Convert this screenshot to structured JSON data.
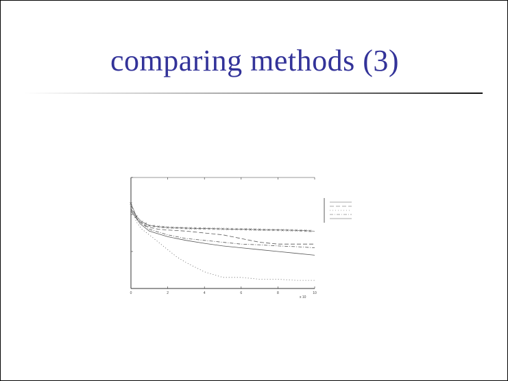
{
  "slide": {
    "title": "comparing methods (3)"
  },
  "chart_data": {
    "type": "line",
    "title": "",
    "xlabel": "",
    "ylabel": "",
    "xlim": [
      0,
      10
    ],
    "x_tick_labels": [
      "0",
      "2",
      "4",
      "6",
      "8",
      "10"
    ],
    "x_multiplier_label": "x 10",
    "ylog": true,
    "ylim_decades": [
      -3,
      0
    ],
    "y_tick_labels": [
      "",
      "",
      ""
    ],
    "grid": false,
    "legend_placement": "right",
    "series": [
      {
        "style": "crosses",
        "x": [
          0,
          0.3,
          0.6,
          1,
          1.5,
          2,
          3,
          4,
          5,
          6,
          7,
          8,
          9,
          10
        ],
        "y": [
          -0.7,
          -1.05,
          -1.2,
          -1.3,
          -1.33,
          -1.35,
          -1.37,
          -1.38,
          -1.39,
          -1.4,
          -1.41,
          -1.42,
          -1.43,
          -1.45
        ]
      },
      {
        "style": "dashed",
        "x": [
          0,
          0.3,
          0.6,
          1,
          1.5,
          2,
          3,
          4,
          5,
          6,
          7,
          8,
          9,
          10
        ],
        "y": [
          -0.75,
          -1.1,
          -1.25,
          -1.35,
          -1.4,
          -1.42,
          -1.45,
          -1.5,
          -1.55,
          -1.65,
          -1.75,
          -1.8,
          -1.8,
          -1.8
        ]
      },
      {
        "style": "dotted",
        "x": [
          0,
          0.3,
          0.6,
          1,
          1.5,
          2,
          2.5,
          3,
          4,
          5,
          6,
          7,
          8,
          9,
          10
        ],
        "y": [
          -0.8,
          -1.2,
          -1.4,
          -1.55,
          -1.75,
          -1.95,
          -2.15,
          -2.3,
          -2.55,
          -2.7,
          -2.7,
          -2.75,
          -2.75,
          -2.78,
          -2.78
        ]
      },
      {
        "style": "dash-dot",
        "x": [
          0,
          0.5,
          1,
          2,
          3,
          4,
          5,
          6,
          7,
          8,
          9,
          10
        ],
        "y": [
          -0.85,
          -1.2,
          -1.4,
          -1.55,
          -1.65,
          -1.7,
          -1.75,
          -1.8,
          -1.82,
          -1.85,
          -1.87,
          -1.9
        ]
      },
      {
        "style": "solid",
        "x": [
          0,
          0.5,
          1,
          2,
          3,
          4,
          5,
          6,
          7,
          8,
          9,
          10
        ],
        "y": [
          -0.9,
          -1.25,
          -1.45,
          -1.6,
          -1.7,
          -1.78,
          -1.85,
          -1.9,
          -1.95,
          -2.0,
          -2.05,
          -2.1
        ]
      }
    ],
    "legend_entries": [
      "",
      "",
      "",
      "",
      ""
    ],
    "legend_colors": [
      "#555555",
      "#555555",
      "#555555",
      "#555555",
      "#555555"
    ]
  },
  "colors": {
    "title": "#333399",
    "axis": "#333333",
    "series": "#555555"
  }
}
